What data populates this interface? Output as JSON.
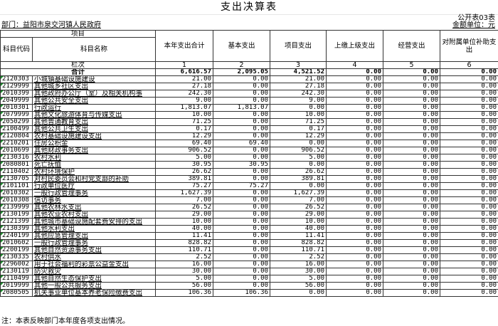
{
  "title": "支出决算表",
  "form_no": "公开表03表",
  "unit": "金额单位：元",
  "department": "部门：益阳市泉交河镇人民政府",
  "headers": {
    "item": "项目",
    "code": "科目代码",
    "name": "科目名称",
    "cols": [
      "本年支出合计",
      "基本支出",
      "项目支出",
      "上缴上级支出",
      "经营支出",
      "对附属单位补助支出"
    ],
    "row_label": "栏次",
    "col_numbers": [
      "1",
      "2",
      "3",
      "4",
      "5",
      "6"
    ]
  },
  "total": {
    "label": "合计",
    "values": [
      "6,616.57",
      "2,095.05",
      "4,521.52",
      "0.00",
      "0.00",
      "0.00"
    ]
  },
  "rows": [
    [
      "2120303",
      "小城镇基础设施建设",
      "21.00",
      "0.00",
      "21.00"
    ],
    [
      "2129999",
      "其他城乡社区支出",
      "27.18",
      "0.00",
      "27.18"
    ],
    [
      "2010399",
      "其他政府办公厅（室）及相关机构事",
      "242.30",
      "0.00",
      "242.30"
    ],
    [
      "2049999",
      "其他公共安全支出",
      "9.00",
      "0.00",
      "9.00"
    ],
    [
      "2010301",
      "行政运行",
      "1,813.07",
      "1,813.07",
      "0.00"
    ],
    [
      "2079999",
      "其他文化旅游体育与传媒支出",
      "10.00",
      "0.00",
      "10.00"
    ],
    [
      "2050299",
      "其他普通教育支出",
      "71.25",
      "0.00",
      "71.25"
    ],
    [
      "2100499",
      "其他公共卫生支出",
      "0.17",
      "0.00",
      "0.17"
    ],
    [
      "2120804",
      "农村基础设施建设支出",
      "12.29",
      "0.00",
      "12.29"
    ],
    [
      "2210201",
      "住房公积金",
      "69.40",
      "69.40",
      "0.00"
    ],
    [
      "2010699",
      "其他财政事务支出",
      "906.52",
      "0.00",
      "906.52"
    ],
    [
      "2130316",
      "农村水利",
      "5.00",
      "0.00",
      "5.00"
    ],
    [
      "2080801",
      "死亡抚恤",
      "30.95",
      "30.95",
      "0.00"
    ],
    [
      "2110402",
      "农村环境保护",
      "26.62",
      "0.00",
      "26.62"
    ],
    [
      "2130705",
      "对村民委员会和村党支部的补助",
      "389.81",
      "0.00",
      "389.81"
    ],
    [
      "2101101",
      "行政单位医疗",
      "75.27",
      "75.27",
      "0.00"
    ],
    [
      "2010302",
      "一般行政管理事务",
      "1,627.39",
      "0.00",
      "1,627.39"
    ],
    [
      "2010308",
      "信访事务",
      "7.00",
      "0.00",
      "7.00"
    ],
    [
      "2139999",
      "其他农林水支出",
      "26.52",
      "0.00",
      "26.52"
    ],
    [
      "2130199",
      "其他农业农村支出",
      "29.00",
      "0.00",
      "29.00"
    ],
    [
      "2121399",
      "其他城市基础设施配套费安排的支出",
      "10.00",
      "0.00",
      "10.00"
    ],
    [
      "2130399",
      "其他水利支出",
      "40.00",
      "0.00",
      "40.00"
    ],
    [
      "2240199",
      "其他应急管理支出",
      "11.41",
      "0.00",
      "11.41"
    ],
    [
      "2010602",
      "一般行政管理事务",
      "828.82",
      "0.00",
      "828.82"
    ],
    [
      "2200199",
      "其他自然资源事务支出",
      "110.71",
      "0.00",
      "110.71"
    ],
    [
      "2130335",
      "农村供水",
      "2.52",
      "0.00",
      "2.52"
    ],
    [
      "2296002",
      "用于社会福利的彩票公益金支出",
      "16.00",
      "0.00",
      "16.00"
    ],
    [
      "2130119",
      "防灾救灾",
      "30.00",
      "0.00",
      "30.00"
    ],
    [
      "2110499",
      "其他自然生态保护支出",
      "5.00",
      "0.00",
      "5.00"
    ],
    [
      "2019999",
      "其他一般公共服务支出",
      "56.00",
      "0.00",
      "56.00"
    ],
    [
      "2080505",
      "机关事业单位基本养老保险缴费支出",
      "106.36",
      "106.36",
      "0.00"
    ]
  ],
  "zero_value": "0.00",
  "note": "注：本表反映部门本年度各项支出情况。",
  "colors": {
    "border": "#333333",
    "cell_marker": "#1a8a2a"
  }
}
